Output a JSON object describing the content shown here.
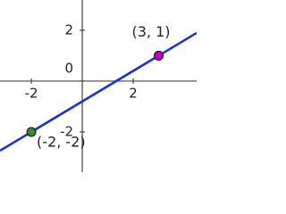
{
  "chart_data": {
    "type": "line",
    "x": [
      -2,
      3
    ],
    "series": [
      {
        "color": "#1f2fe0",
        "values": [
          -2,
          1
        ],
        "point_colors": [
          "#2e8b2e",
          "#c000c0"
        ],
        "value_labels": [
          "(-2, -2)",
          "(3, 1)"
        ],
        "label_colors": [
          "#1e6b1e",
          "#a000b0"
        ]
      }
    ],
    "xlim": [
      -3.23,
      4.49
    ],
    "ylim": [
      -3.58,
      3.19
    ],
    "xticks": [
      -2,
      2
    ],
    "yticks": [
      -2,
      0,
      2
    ],
    "grid": false
  }
}
